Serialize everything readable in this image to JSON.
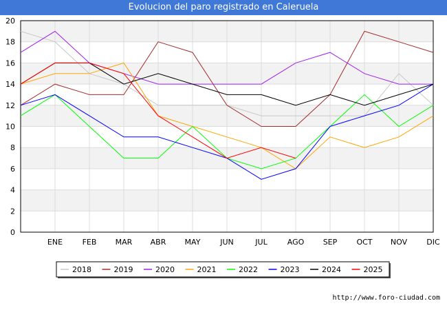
{
  "header": {
    "title": "Evolucion del paro registrado en Caleruela"
  },
  "footer": {
    "source": "http://www.foro-ciudad.com"
  },
  "chart_data": {
    "type": "line",
    "title": "Evolucion del paro registrado en Caleruela",
    "xlabel": "",
    "ylabel": "",
    "categories": [
      "",
      "ENE",
      "FEB",
      "MAR",
      "ABR",
      "MAY",
      "JUN",
      "JUL",
      "AGO",
      "SEP",
      "OCT",
      "NOV",
      "DIC"
    ],
    "ylim": [
      0,
      20
    ],
    "yticks": [
      0,
      2,
      4,
      6,
      8,
      10,
      12,
      14,
      16,
      18,
      20
    ],
    "grid": true,
    "legend_position": "bottom",
    "series": [
      {
        "name": "2018",
        "color": "#c8c8c8",
        "values": [
          19,
          18,
          15,
          14,
          12,
          12,
          12,
          11,
          11,
          11,
          11,
          15,
          12
        ]
      },
      {
        "name": "2019",
        "color": "#a52a2a",
        "values": [
          12,
          14,
          13,
          13,
          18,
          17,
          12,
          10,
          10,
          13,
          19,
          18,
          17
        ]
      },
      {
        "name": "2020",
        "color": "#a020f0",
        "values": [
          17,
          19,
          16,
          15,
          14,
          14,
          14,
          14,
          16,
          17,
          15,
          14,
          14
        ]
      },
      {
        "name": "2021",
        "color": "#ffa500",
        "values": [
          14,
          15,
          15,
          16,
          11,
          10,
          9,
          8,
          6,
          9,
          8,
          9,
          11
        ]
      },
      {
        "name": "2022",
        "color": "#00ff00",
        "values": [
          11,
          13,
          10,
          7,
          7,
          10,
          7,
          6,
          7,
          10,
          13,
          10,
          12
        ]
      },
      {
        "name": "2023",
        "color": "#0000ff",
        "values": [
          12,
          13,
          11,
          9,
          9,
          8,
          7,
          5,
          6,
          10,
          11,
          12,
          14
        ]
      },
      {
        "name": "2024",
        "color": "#000000",
        "values": [
          14,
          16,
          16,
          14,
          15,
          14,
          13,
          13,
          12,
          13,
          12,
          13,
          14
        ]
      },
      {
        "name": "2025",
        "color": "#ff0000",
        "values": [
          14,
          16,
          16,
          15,
          11,
          9,
          7,
          8,
          7,
          null,
          null,
          null,
          null
        ]
      }
    ]
  }
}
